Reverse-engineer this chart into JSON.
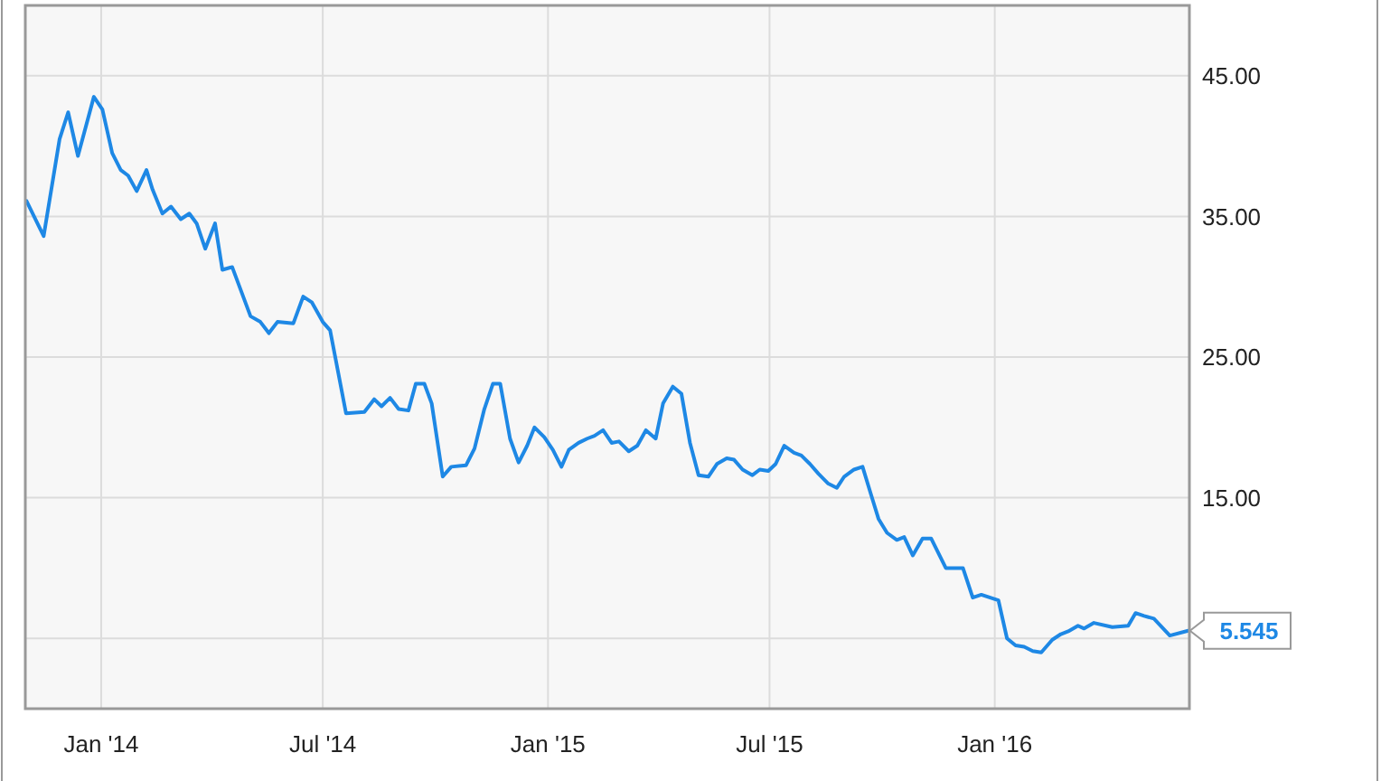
{
  "chart_data": {
    "type": "line",
    "x": [
      "2013-11-01",
      "2013-11-15",
      "2013-11-28",
      "2013-12-05",
      "2013-12-13",
      "2013-12-26",
      "2014-01-02",
      "2014-01-10",
      "2014-01-17",
      "2014-01-23",
      "2014-01-30",
      "2014-02-07",
      "2014-02-12",
      "2014-02-20",
      "2014-02-27",
      "2014-03-07",
      "2014-03-14",
      "2014-03-20",
      "2014-03-27",
      "2014-04-04",
      "2014-04-10",
      "2014-04-18",
      "2014-05-03",
      "2014-05-11",
      "2014-05-18",
      "2014-05-25",
      "2014-06-07",
      "2014-06-15",
      "2014-06-22",
      "2014-07-01",
      "2014-07-07",
      "2014-07-20",
      "2014-08-04",
      "2014-08-12",
      "2014-08-18",
      "2014-08-25",
      "2014-09-01",
      "2014-09-09",
      "2014-09-15",
      "2014-09-22",
      "2014-09-28",
      "2014-10-07",
      "2014-10-14",
      "2014-10-26",
      "2014-11-02",
      "2014-11-10",
      "2014-11-17",
      "2014-11-23",
      "2014-12-01",
      "2014-12-08",
      "2014-12-15",
      "2014-12-21",
      "2014-12-29",
      "2015-01-05",
      "2015-01-12",
      "2015-01-18",
      "2015-01-26",
      "2015-02-02",
      "2015-02-08",
      "2015-02-15",
      "2015-02-22",
      "2015-02-28",
      "2015-03-08",
      "2015-03-15",
      "2015-03-22",
      "2015-03-30",
      "2015-04-05",
      "2015-04-13",
      "2015-04-20",
      "2015-04-27",
      "2015-05-04",
      "2015-05-12",
      "2015-05-19",
      "2015-05-27",
      "2015-06-02",
      "2015-06-09",
      "2015-06-17",
      "2015-06-23",
      "2015-06-30",
      "2015-07-06",
      "2015-07-13",
      "2015-07-21",
      "2015-07-27",
      "2015-08-03",
      "2015-08-10",
      "2015-08-18",
      "2015-08-25",
      "2015-08-31",
      "2015-09-08",
      "2015-09-15",
      "2015-09-22",
      "2015-09-28",
      "2015-10-05",
      "2015-10-13",
      "2015-10-19",
      "2015-10-26",
      "2015-11-03",
      "2015-11-10",
      "2015-11-22",
      "2015-12-06",
      "2015-12-14",
      "2015-12-21",
      "2016-01-04",
      "2016-01-11",
      "2016-01-18",
      "2016-01-25",
      "2016-02-01",
      "2016-02-08",
      "2016-02-17",
      "2016-02-24",
      "2016-03-01",
      "2016-03-09",
      "2016-03-14",
      "2016-03-22",
      "2016-04-06",
      "2016-04-19",
      "2016-04-25",
      "2016-05-02",
      "2016-05-10",
      "2016-05-23",
      "2016-06-07"
    ],
    "series": [
      {
        "color": "#1e88e5",
        "values": [
          36.1,
          33.6,
          40.5,
          42.4,
          39.3,
          43.5,
          42.6,
          39.5,
          38.3,
          37.9,
          36.8,
          38.3,
          36.9,
          35.2,
          35.7,
          34.8,
          35.2,
          34.5,
          32.7,
          34.5,
          31.2,
          31.4,
          27.9,
          27.5,
          26.7,
          27.5,
          27.4,
          29.3,
          28.9,
          27.5,
          26.9,
          21.0,
          21.1,
          22.0,
          21.5,
          22.1,
          21.3,
          21.2,
          23.1,
          23.1,
          21.7,
          16.5,
          17.2,
          17.3,
          18.5,
          21.3,
          23.1,
          23.1,
          19.2,
          17.5,
          18.7,
          20.0,
          19.3,
          18.4,
          17.2,
          18.4,
          18.9,
          19.2,
          19.4,
          19.8,
          18.9,
          19.0,
          18.3,
          18.7,
          19.8,
          19.2,
          21.7,
          22.9,
          22.4,
          18.9,
          16.6,
          16.5,
          17.4,
          17.8,
          17.7,
          17.0,
          16.6,
          17.0,
          16.9,
          17.4,
          18.7,
          18.2,
          18.0,
          17.4,
          16.7,
          16.0,
          15.7,
          16.5,
          17.0,
          17.2,
          15.2,
          13.5,
          12.5,
          12.0,
          12.2,
          10.9,
          12.1,
          12.1,
          10.0,
          10.0,
          7.9,
          8.1,
          7.7,
          5.0,
          4.5,
          4.4,
          4.1,
          4.0,
          4.9,
          5.3,
          5.5,
          5.9,
          5.7,
          6.1,
          5.8,
          5.9,
          6.8,
          6.6,
          6.4,
          5.2,
          5.545
        ]
      }
    ],
    "xlim": [
      "2013-10-31",
      "2016-06-08"
    ],
    "xticks": [
      {
        "value": "2014-01-01",
        "label": "Jan '14"
      },
      {
        "value": "2014-07-01",
        "label": "Jul '14"
      },
      {
        "value": "2015-01-01",
        "label": "Jan '15"
      },
      {
        "value": "2015-07-01",
        "label": "Jul '15"
      },
      {
        "value": "2016-01-01",
        "label": "Jan '16"
      }
    ],
    "ylim": [
      0,
      50
    ],
    "yticks": [
      {
        "value": 5,
        "label": null
      },
      {
        "value": 15,
        "label": "15.00"
      },
      {
        "value": 25,
        "label": "25.00"
      },
      {
        "value": 35,
        "label": "35.00"
      },
      {
        "value": 45,
        "label": "45.00"
      }
    ],
    "grid": true,
    "annotations": [
      {
        "text": "5.545",
        "x": "2016-06-07",
        "y": 5.545
      }
    ]
  }
}
